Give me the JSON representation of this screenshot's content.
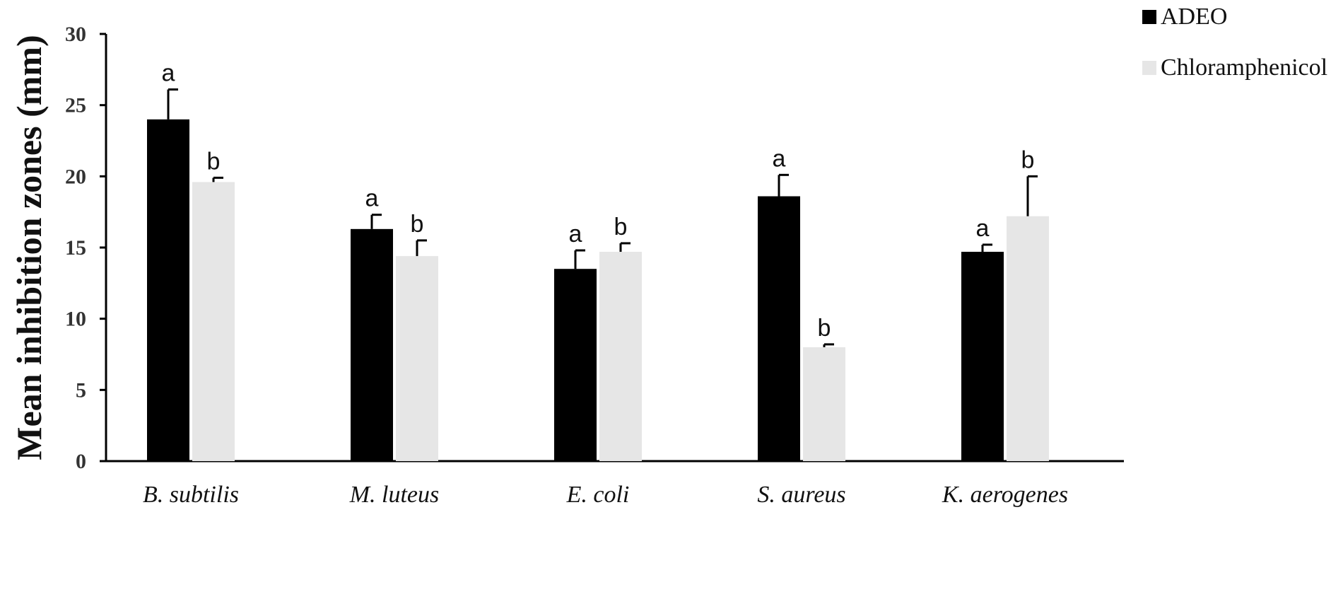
{
  "chart_data": {
    "type": "bar",
    "title": "",
    "xlabel": "",
    "ylabel": "Mean inhibition zones (mm)",
    "ylim": [
      0,
      30
    ],
    "yticks": [
      0,
      5,
      10,
      15,
      20,
      25,
      30
    ],
    "grid": false,
    "legend_position": "top-right",
    "categories": [
      "B. subtilis",
      "M. luteus",
      "E. coli",
      "S. aureus",
      "K. aerogenes"
    ],
    "series": [
      {
        "name": "ADEO",
        "color": "#000000",
        "values": [
          24.0,
          16.3,
          13.5,
          18.6,
          14.7
        ],
        "errors": [
          2.1,
          1.0,
          1.3,
          1.5,
          0.5
        ],
        "significance": [
          "a",
          "a",
          "a",
          "a",
          "a"
        ]
      },
      {
        "name": "Chloramphenicol",
        "color": "#e6e6e6",
        "values": [
          19.6,
          14.4,
          14.7,
          8.0,
          17.2
        ],
        "errors": [
          0.3,
          1.1,
          0.6,
          0.2,
          2.8
        ],
        "significance": [
          "b",
          "b",
          "b",
          "b",
          "b"
        ]
      }
    ]
  }
}
